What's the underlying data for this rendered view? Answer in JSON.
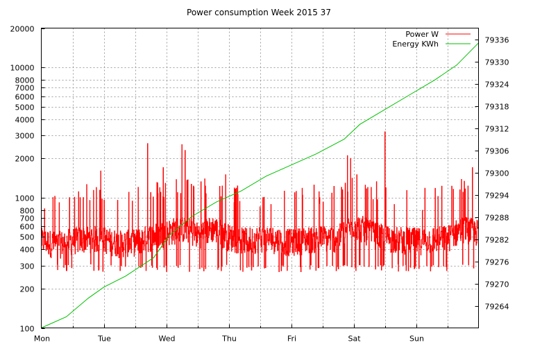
{
  "chart_data": {
    "type": "line",
    "title": "Power consumption Week 2015 37",
    "x_categories": [
      "Mon",
      "Tue",
      "Wed",
      "Thu",
      "Fri",
      "Sat",
      "Sun"
    ],
    "y_left": {
      "scale": "log",
      "ylim": [
        100,
        20000
      ],
      "ticks": [
        100,
        200,
        300,
        400,
        500,
        600,
        700,
        800,
        1000,
        2000,
        3000,
        4000,
        5000,
        6000,
        7000,
        8000,
        10000,
        20000
      ]
    },
    "y_right": {
      "scale": "linear",
      "ylim": [
        79258,
        79339
      ],
      "ticks": [
        79264,
        79270,
        79276,
        79282,
        79288,
        79294,
        79300,
        79306,
        79312,
        79318,
        79324,
        79330,
        79336
      ]
    },
    "grid": true,
    "legend_position": "top-right",
    "series": [
      {
        "name": "Power W",
        "color": "#ff0000",
        "axis": "left",
        "baseline_points": [
          [
            0.0,
            450
          ],
          [
            0.25,
            420
          ],
          [
            0.5,
            450
          ],
          [
            0.75,
            470
          ],
          [
            1.0,
            460
          ],
          [
            1.25,
            430
          ],
          [
            1.5,
            440
          ],
          [
            1.75,
            480
          ],
          [
            2.0,
            520
          ],
          [
            2.25,
            560
          ],
          [
            2.5,
            500
          ],
          [
            2.75,
            560
          ],
          [
            3.0,
            480
          ],
          [
            3.25,
            450
          ],
          [
            3.5,
            470
          ],
          [
            3.75,
            460
          ],
          [
            4.0,
            440
          ],
          [
            4.25,
            460
          ],
          [
            4.5,
            470
          ],
          [
            4.75,
            470
          ],
          [
            5.0,
            600
          ],
          [
            5.25,
            520
          ],
          [
            5.5,
            470
          ],
          [
            5.75,
            460
          ],
          [
            6.0,
            450
          ],
          [
            6.25,
            460
          ],
          [
            6.5,
            470
          ],
          [
            6.75,
            560
          ],
          [
            6.98,
            520
          ]
        ],
        "spikes": [
          [
            0.05,
            820
          ],
          [
            0.45,
            1000
          ],
          [
            0.62,
            1000
          ],
          [
            0.95,
            1600
          ],
          [
            1.4,
            1100
          ],
          [
            1.55,
            1200
          ],
          [
            1.7,
            2600
          ],
          [
            1.95,
            1700
          ],
          [
            2.25,
            2550
          ],
          [
            2.3,
            2300
          ],
          [
            2.95,
            1500
          ],
          [
            3.5,
            850
          ],
          [
            4.45,
            900
          ],
          [
            4.9,
            2100
          ],
          [
            4.95,
            2000
          ],
          [
            5.05,
            1500
          ],
          [
            5.5,
            3200
          ],
          [
            6.1,
            800
          ],
          [
            6.45,
            600
          ],
          [
            6.75,
            1100
          ],
          [
            6.9,
            1700
          ]
        ],
        "min_dips": 270
      },
      {
        "name": "Energy KWh",
        "color": "#00c000",
        "axis": "right",
        "points": [
          [
            0.0,
            79258
          ],
          [
            0.4,
            79261
          ],
          [
            0.75,
            79266
          ],
          [
            1.0,
            79269
          ],
          [
            1.35,
            79272
          ],
          [
            1.8,
            79277
          ],
          [
            2.05,
            79283
          ],
          [
            2.4,
            79288
          ],
          [
            2.8,
            79292
          ],
          [
            3.2,
            79295
          ],
          [
            3.6,
            79299
          ],
          [
            4.0,
            79302
          ],
          [
            4.4,
            79305
          ],
          [
            4.85,
            79309
          ],
          [
            5.1,
            79313
          ],
          [
            5.5,
            79317
          ],
          [
            5.9,
            79321
          ],
          [
            6.3,
            79325
          ],
          [
            6.65,
            79329
          ],
          [
            7.0,
            79335
          ]
        ]
      }
    ]
  }
}
